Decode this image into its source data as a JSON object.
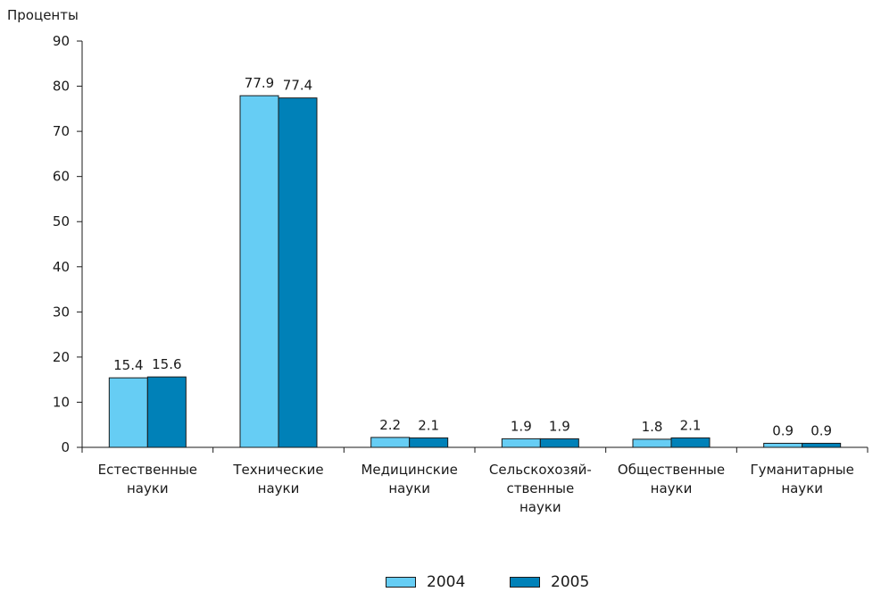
{
  "chart_data": {
    "type": "bar",
    "ylabel": "Проценты",
    "ylim": [
      0,
      90
    ],
    "yticks": [
      0,
      10,
      20,
      30,
      40,
      50,
      60,
      70,
      80,
      90
    ],
    "categories": [
      [
        "Естественные",
        "науки"
      ],
      [
        "Технические",
        "науки"
      ],
      [
        "Медицинские",
        "науки"
      ],
      [
        "Сельскохозяй-",
        "ственные",
        "науки"
      ],
      [
        "Общественные",
        "науки"
      ],
      [
        "Гуманитарные",
        "науки"
      ]
    ],
    "series": [
      {
        "name": "2004",
        "color": "#66cdf4",
        "values": [
          15.4,
          77.9,
          2.2,
          1.9,
          1.8,
          0.9
        ]
      },
      {
        "name": "2005",
        "color": "#0081b8",
        "values": [
          15.6,
          77.4,
          2.1,
          1.9,
          2.1,
          0.9
        ]
      }
    ],
    "grid": false,
    "legend_position": "bottom-center"
  }
}
